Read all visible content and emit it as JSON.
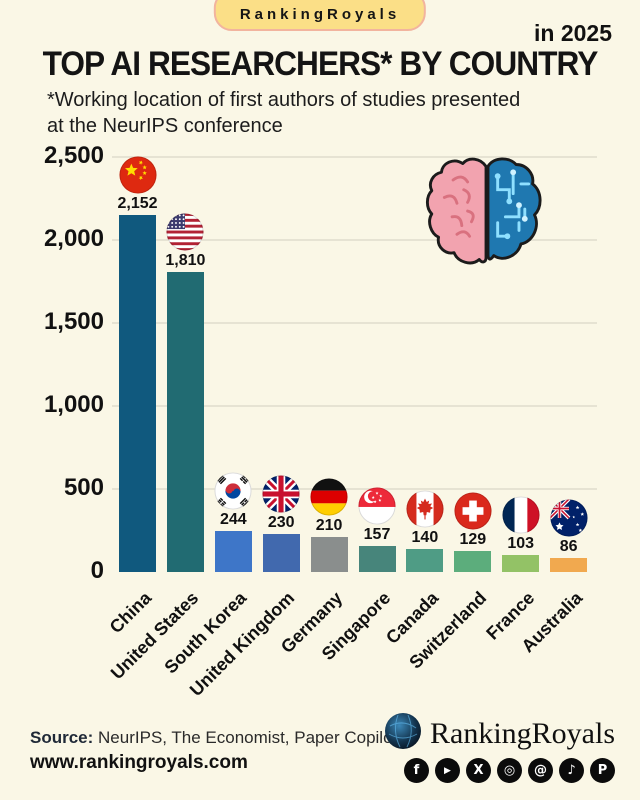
{
  "header": {
    "brand_badge": "RankingRoyals",
    "year_note": "in 2025",
    "title": "TOP AI RESEARCHERS* BY COUNTRY",
    "subtitle_line1": "*Working location of first authors of studies presented",
    "subtitle_line2": "at the NeurIPS conference"
  },
  "chart_data": {
    "type": "bar",
    "title": "TOP AI RESEARCHERS* BY COUNTRY in 2025",
    "categories": [
      "China",
      "United States",
      "South Korea",
      "United Kingdom",
      "Germany",
      "Singapore",
      "Canada",
      "Switzerland",
      "France",
      "Australia"
    ],
    "values": [
      2152,
      1810,
      244,
      230,
      210,
      157,
      140,
      129,
      103,
      86
    ],
    "value_labels": [
      "2,152",
      "1,810",
      "244",
      "230",
      "210",
      "157",
      "140",
      "129",
      "103",
      "86"
    ],
    "bar_colors": [
      "#10597E",
      "#216B72",
      "#3E76C8",
      "#4169AE",
      "#8A8E8D",
      "#47857B",
      "#4F9C85",
      "#5CAD7C",
      "#93C266",
      "#F1A94F"
    ],
    "flags": [
      "cn",
      "us",
      "kr",
      "gb",
      "de",
      "sg",
      "ca",
      "ch",
      "fr",
      "au"
    ],
    "xlabel": "",
    "ylabel": "",
    "ylim": [
      0,
      2500
    ],
    "yticks": [
      0,
      500,
      1000,
      1500,
      2000,
      2500
    ],
    "ytick_labels": [
      "0",
      "500",
      "1,000",
      "1,500",
      "2,000",
      "2,500"
    ],
    "grid": true,
    "legend": false
  },
  "footer": {
    "source_label": "Source:",
    "source_text": "NeurIPS, The Economist, Paper Copilot",
    "website": "www.rankingroyals.com",
    "logo_text": "RankingRoyals",
    "social_icons": [
      "facebook",
      "youtube",
      "x",
      "instagram",
      "threads",
      "tiktok",
      "pinterest"
    ]
  },
  "colors": {
    "background": "#FAF7E6",
    "badge_bg": "#FBDF87",
    "gridline": "#E6E3D3"
  }
}
